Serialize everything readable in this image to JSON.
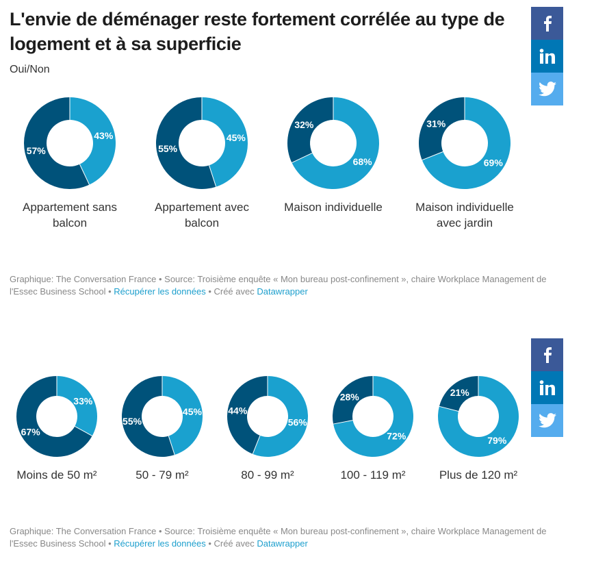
{
  "title": "L'envie de déménager reste fortement corrélée au type de logement et à sa superficie",
  "subtitle": "Oui/Non",
  "colors": {
    "oui": "#1aa1cf",
    "non": "#00527a",
    "link": "#1d9fcd"
  },
  "share_icons": [
    "facebook-icon",
    "linkedin-icon",
    "twitter-icon"
  ],
  "chart_data": [
    {
      "type": "pie",
      "variant": "donut",
      "series": [
        {
          "legend_printed": false,
          "color": "#1aa1cf"
        },
        {
          "legend_printed": false,
          "color": "#00527a"
        }
      ],
      "categories": [
        "Appartement sans balcon",
        "Appartement avec balcon",
        "Maison individuelle",
        "Maison individuelle avec jardin"
      ],
      "items": [
        {
          "label": "Appartement sans balcon",
          "oui": 43,
          "non": 57
        },
        {
          "label": "Appartement avec balcon",
          "oui": 45,
          "non": 55
        },
        {
          "label": "Maison individuelle",
          "oui": 68,
          "non": 32
        },
        {
          "label": "Maison individuelle avec jardin",
          "oui": 69,
          "non": 31
        }
      ]
    },
    {
      "type": "pie",
      "variant": "donut",
      "categories": [
        "Moins de 50 m²",
        "50 - 79 m²",
        "80 - 99 m²",
        "100 - 119 m²",
        "Plus de 120 m²"
      ],
      "items": [
        {
          "label": "Moins de 50 m²",
          "oui": 33,
          "non": 67
        },
        {
          "label": "50 - 79 m²",
          "oui": 45,
          "non": 55
        },
        {
          "label": "80 - 99 m²",
          "oui": 56,
          "non": 44
        },
        {
          "label": "100 - 119 m²",
          "oui": 72,
          "non": 28
        },
        {
          "label": "Plus de 120 m²",
          "oui": 79,
          "non": 21
        }
      ]
    }
  ],
  "footer": {
    "text_prefix": "Graphique: The Conversation France • Source: Troisième enquête « Mon bureau post-confinement », chaire Workplace Management de l'Essec Business School • ",
    "link_data": "Récupérer les données",
    "separator": " • Créé avec ",
    "link_tool": "Datawrapper"
  }
}
